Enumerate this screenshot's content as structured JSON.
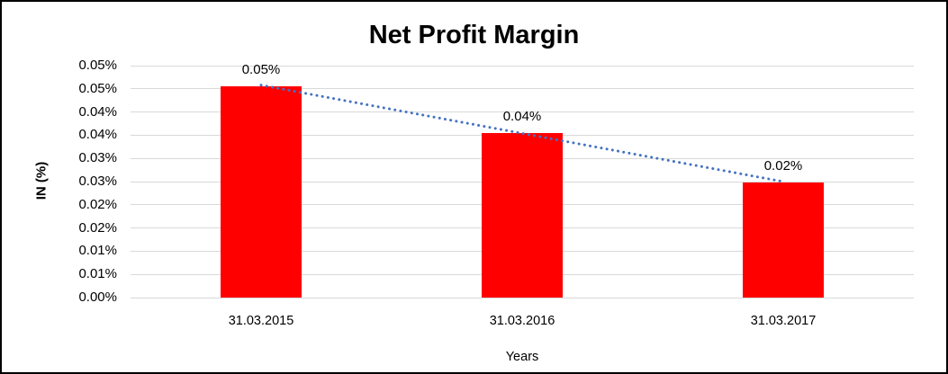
{
  "chart_data": {
    "type": "bar",
    "title": "Net Profit Margin",
    "xlabel": "Years",
    "ylabel": "IN (%)",
    "categories": [
      "31.03.2015",
      "31.03.2016",
      "31.03.2017"
    ],
    "values": [
      0.0456,
      0.0354,
      0.0248
    ],
    "data_labels": [
      "0.05%",
      "0.04%",
      "0.02%"
    ],
    "value_unit": "%",
    "ylim": [
      0,
      0.05
    ],
    "ytick_step": 0.005,
    "ytick_labels_top_to_bottom": [
      "0.05%",
      "0.05%",
      "0.04%",
      "0.04%",
      "0.03%",
      "0.03%",
      "0.02%",
      "0.02%",
      "0.01%",
      "0.01%",
      "0.00%"
    ],
    "grid": true,
    "legend": false,
    "bar_color": "#FF0000",
    "gridline_color": "#D9D9D9",
    "text_color": "#000000",
    "trendline": {
      "type": "linear",
      "style": "dotted",
      "color": "#4472C4",
      "spans": "first-bar-center to last-bar-center"
    }
  }
}
